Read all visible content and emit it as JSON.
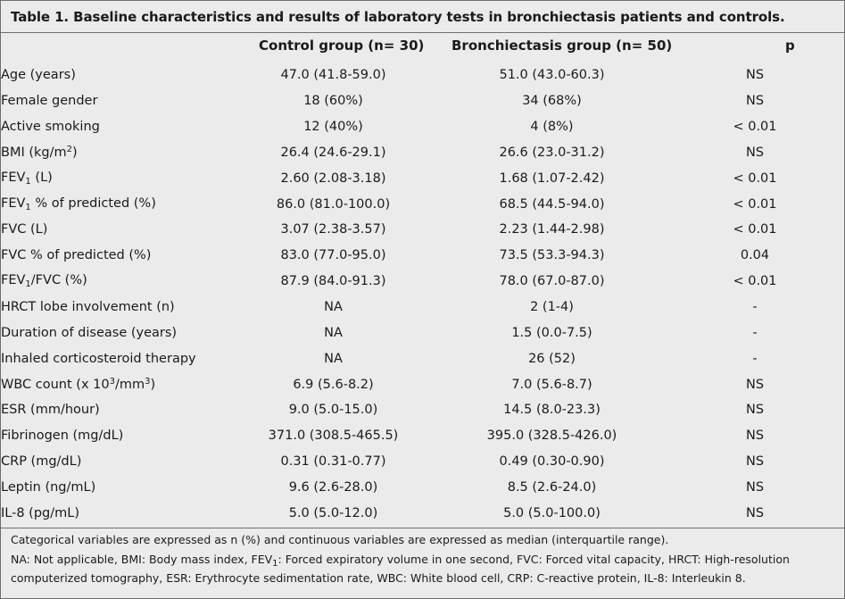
{
  "table": {
    "title": "Table 1. Baseline characteristics and results of laboratory tests in bronchiectasis patients and controls.",
    "columns": {
      "control": "Control group (n= 30)",
      "bronchiectasis": "Bronchiectasis group (n= 50)",
      "p": "p"
    },
    "rows": [
      {
        "label": "Age (years)",
        "control": "47.0 (41.8-59.0)",
        "bronchiectasis": "51.0 (43.0-60.3)",
        "p": "NS"
      },
      {
        "label": "Female gender",
        "control": "18 (60%)",
        "bronchiectasis": "34 (68%)",
        "p": "NS"
      },
      {
        "label": "Active smoking",
        "control": "12 (40%)",
        "bronchiectasis": "4 (8%)",
        "p": "< 0.01"
      },
      {
        "label": "BMI (kg/m",
        "label_sup": "2",
        "label_after": ")",
        "control": "26.4 (24.6-29.1)",
        "bronchiectasis": "26.6 (23.0-31.2)",
        "p": "NS"
      },
      {
        "label": "FEV",
        "label_sub": "1",
        "label_after": " (L)",
        "control": "2.60 (2.08-3.18)",
        "bronchiectasis": "1.68 (1.07-2.42)",
        "p": "< 0.01"
      },
      {
        "label": "FEV",
        "label_sub": "1",
        "label_after": " % of predicted (%)",
        "control": "86.0 (81.0-100.0)",
        "bronchiectasis": "68.5 (44.5-94.0)",
        "p": "< 0.01"
      },
      {
        "label": "FVC (L)",
        "control": "3.07 (2.38-3.57)",
        "bronchiectasis": "2.23 (1.44-2.98)",
        "p": "< 0.01"
      },
      {
        "label": "FVC % of predicted (%)",
        "control": "83.0 (77.0-95.0)",
        "bronchiectasis": "73.5 (53.3-94.3)",
        "p": "0.04"
      },
      {
        "label": "FEV",
        "label_sub": "1",
        "label_after": "/FVC (%)",
        "control": "87.9 (84.0-91.3)",
        "bronchiectasis": "78.0 (67.0-87.0)",
        "p": "< 0.01"
      },
      {
        "label": "HRCT lobe involvement (n)",
        "control": "NA",
        "bronchiectasis": "2 (1-4)",
        "p": "-"
      },
      {
        "label": "Duration of disease (years)",
        "control": "NA",
        "bronchiectasis": "1.5 (0.0-7.5)",
        "p": "-"
      },
      {
        "label": "Inhaled corticosteroid therapy",
        "control": "NA",
        "bronchiectasis": "26 (52)",
        "p": "-"
      },
      {
        "label": "WBC count (x 10",
        "label_sup": "3",
        "label_mid": "/mm",
        "label_sup2": "3",
        "label_after": ")",
        "control": "6.9 (5.6-8.2)",
        "bronchiectasis": "7.0 (5.6-8.7)",
        "p": "NS"
      },
      {
        "label": "ESR (mm/hour)",
        "control": "9.0 (5.0-15.0)",
        "bronchiectasis": "14.5 (8.0-23.3)",
        "p": "NS"
      },
      {
        "label": "Fibrinogen (mg/dL)",
        "control": "371.0 (308.5-465.5)",
        "bronchiectasis": "395.0 (328.5-426.0)",
        "p": "NS"
      },
      {
        "label": "CRP (mg/dL)",
        "control": "0.31 (0.31-0.77)",
        "bronchiectasis": "0.49 (0.30-0.90)",
        "p": "NS"
      },
      {
        "label": "Leptin (ng/mL)",
        "control": "9.6 (2.6-28.0)",
        "bronchiectasis": "8.5 (2.6-24.0)",
        "p": "NS"
      },
      {
        "label": "IL-8 (pg/mL)",
        "control": "5.0 (5.0-12.0)",
        "bronchiectasis": "5.0 (5.0-100.0)",
        "p": "NS"
      }
    ],
    "footnotes": {
      "line1": "Categorical variables are expressed as n (%) and continuous variables are expressed as median (interquartile range).",
      "line2_a": "NA: Not applicable, BMI: Body mass index, FEV",
      "line2_sub": "1",
      "line2_b": ": Forced expiratory volume in one second, FVC: Forced vital capacity, HRCT: High-resolution",
      "line3": "computerized tomography, ESR: Erythrocyte sedimentation rate, WBC: White blood cell, CRP: C-reactive protein, IL-8: Interleukin 8."
    }
  }
}
